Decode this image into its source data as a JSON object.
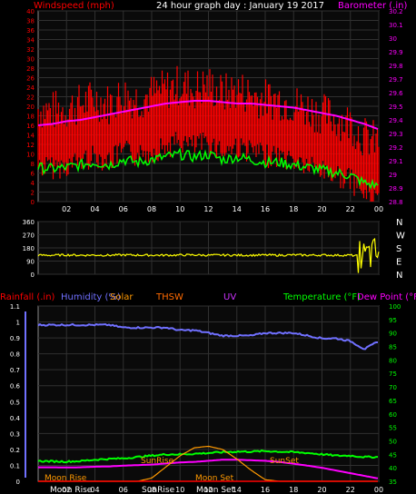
{
  "header": {
    "left_label": "Windspeed (mph)",
    "title": "24 hour graph day : January 19 2017",
    "right_label": "Barometer (.in)"
  },
  "colors": {
    "background": "#000000",
    "plot_bg": "#0a0a0a",
    "grid": "#303030",
    "wind": "#ff0000",
    "gust": "#ff0000",
    "avg_wind": "#00ff00",
    "barometer": "#ff00ff",
    "direction": "#ffff00",
    "humidity": "#7070ff",
    "rain": "#ff0000",
    "temperature": "#00ff00",
    "dewpoint": "#ff00ff",
    "solar": "#ff9900",
    "thsw": "#ff6a00",
    "uv": "#cc33ff",
    "text_white": "#ffffff"
  },
  "time_ticks": [
    "02",
    "04",
    "06",
    "08",
    "10",
    "12",
    "14",
    "16",
    "18",
    "20",
    "22",
    "00"
  ],
  "wind_panel": {
    "y_left_ticks": [
      "0",
      "2",
      "4",
      "6",
      "8",
      "10",
      "12",
      "14",
      "16",
      "18",
      "20",
      "22",
      "24",
      "26",
      "28",
      "30",
      "32",
      "34",
      "36",
      "38",
      "40"
    ],
    "y_right_ticks": [
      "28.8",
      "28.9",
      "29",
      "29.1",
      "29.2",
      "29.3",
      "29.4",
      "29.5",
      "29.6",
      "29.7",
      "29.8",
      "29.9",
      "30",
      "30.1",
      "30.2"
    ]
  },
  "dir_panel": {
    "y_ticks": [
      "360",
      "270",
      "180",
      "90",
      "0"
    ],
    "compass": [
      "N",
      "W",
      "S",
      "E",
      "N"
    ]
  },
  "bottom_panel": {
    "legend": {
      "rainfall": "Rainfall (.in)",
      "humidity": "Humidity (%)",
      "solar": "Solar",
      "thsw": "THSW",
      "uv": "UV",
      "temperature": "Temperature (°F)",
      "dewpoint": "Dew Point (°F)"
    },
    "y_left_ticks": [
      "0",
      "0.1",
      "0.2",
      "0.3",
      "0.4",
      "0.5",
      "0.6",
      "0.7",
      "0.8",
      "0.9",
      "1",
      "1.1"
    ],
    "y_right_ticks": [
      "35",
      "40",
      "45",
      "50",
      "55",
      "60",
      "65",
      "70",
      "75",
      "80",
      "85",
      "90",
      "95",
      "100"
    ],
    "annotations": {
      "moon_rise": "Moon Rise",
      "sun_rise": "SunRise",
      "sun_set": "SunSet",
      "moon_set": "Moon Set"
    }
  },
  "chart_data": [
    {
      "type": "line",
      "title": "24 hour graph day : January 19 2017",
      "x": [
        "00",
        "01",
        "02",
        "03",
        "04",
        "05",
        "06",
        "07",
        "08",
        "09",
        "10",
        "11",
        "12",
        "13",
        "14",
        "15",
        "16",
        "17",
        "18",
        "19",
        "20",
        "21",
        "22",
        "23",
        "00"
      ],
      "series": [
        {
          "name": "Windspeed (mph)",
          "axis": "left",
          "values": [
            13,
            12.5,
            13,
            14,
            15,
            14,
            16,
            15,
            16,
            17,
            18,
            17,
            18,
            16,
            17,
            16,
            15,
            15,
            14,
            13,
            12,
            11,
            10,
            7,
            6
          ]
        },
        {
          "name": "Barometer (.in)",
          "axis": "right",
          "values": [
            29.36,
            29.37,
            29.39,
            29.4,
            29.42,
            29.44,
            29.46,
            29.48,
            29.5,
            29.52,
            29.53,
            29.54,
            29.54,
            29.53,
            29.52,
            29.52,
            29.51,
            29.5,
            29.49,
            29.47,
            29.45,
            29.43,
            29.4,
            29.37,
            29.33
          ]
        }
      ],
      "ylim_left": [
        0,
        40
      ],
      "ylim_right": [
        28.8,
        30.2
      ]
    },
    {
      "type": "line",
      "title": "",
      "series": [
        {
          "name": "Wind direction",
          "values": [
            130,
            130,
            132,
            130,
            131,
            130,
            132,
            131,
            130,
            130,
            131,
            132,
            130,
            131,
            130,
            130,
            131,
            130,
            132,
            130,
            131,
            130,
            130,
            120,
            150
          ]
        }
      ],
      "ylim": [
        0,
        360
      ]
    },
    {
      "type": "line",
      "title": "",
      "x": [
        "00",
        "01",
        "02",
        "03",
        "04",
        "05",
        "06",
        "07",
        "08",
        "09",
        "10",
        "11",
        "12",
        "13",
        "14",
        "15",
        "16",
        "17",
        "18",
        "19",
        "20",
        "21",
        "22",
        "23",
        "00"
      ],
      "series": [
        {
          "name": "Humidity (%)",
          "axis": "right",
          "values": [
            93,
            93,
            93,
            93,
            93,
            93,
            92,
            92,
            92,
            92,
            91,
            91,
            90,
            89,
            89,
            89,
            90,
            90,
            90,
            89,
            88,
            88,
            87,
            84,
            87
          ]
        },
        {
          "name": "Temperature (°F)",
          "axis": "right",
          "values": [
            42.5,
            42.4,
            42.3,
            42.5,
            43,
            43.3,
            43.5,
            44,
            44.5,
            45,
            45,
            45.2,
            45.5,
            45.8,
            46,
            46,
            46.2,
            46,
            45.8,
            45.5,
            45,
            44.5,
            44.5,
            44,
            44
          ]
        },
        {
          "name": "Dew Point (°F)",
          "axis": "right",
          "values": [
            40.2,
            40.2,
            40.1,
            40.2,
            40.4,
            40.5,
            40.8,
            41,
            41.2,
            41.6,
            42,
            42.2,
            42.6,
            43,
            43,
            42.8,
            42.6,
            42.2,
            41.5,
            40.8,
            40,
            39,
            38,
            37,
            36
          ]
        },
        {
          "name": "Solar",
          "axis": "left",
          "values": [
            0,
            0,
            0,
            0,
            0,
            0,
            0,
            0,
            0.02,
            0.09,
            0.16,
            0.21,
            0.22,
            0.2,
            0.14,
            0.07,
            0.01,
            0,
            0,
            0,
            0,
            0,
            0,
            0,
            0
          ]
        },
        {
          "name": "Rainfall (.in)",
          "axis": "left",
          "values": [
            0,
            0,
            0,
            0,
            0,
            0,
            0,
            0,
            0,
            0,
            0,
            0,
            0,
            0,
            0,
            0,
            0,
            0,
            0,
            0,
            0,
            0,
            0,
            0,
            0
          ]
        }
      ],
      "ylim_left": [
        0,
        1.1
      ],
      "ylim_right": [
        35,
        100
      ]
    }
  ]
}
